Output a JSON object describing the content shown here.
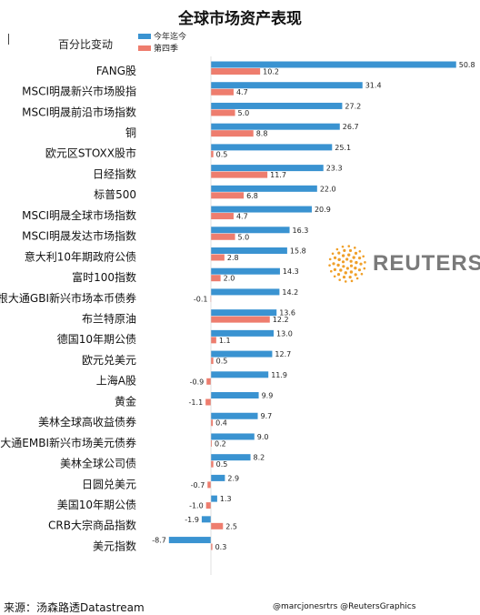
{
  "title": "全球市场资产表现",
  "subtitle": "百分比变动",
  "source": "来源：汤森路透Datastream",
  "credit": "@marcjonesrtrs @ReutersGraphics",
  "logo_text": "REUTERS",
  "colors": {
    "ytd": "#3a93d1",
    "q4": "#ee7d6e",
    "logo": "#f0a02a"
  },
  "chart_data": {
    "type": "bar",
    "orientation": "horizontal",
    "title": "全球市场资产表现",
    "subtitle": "百分比变动",
    "legend_position": "top-left",
    "categories": [
      "FANG股",
      "MSCI明晟新兴市场股指",
      "MSCI明晟前沿市场指数",
      "铜",
      "欧元区STOXX股市",
      "日经指数",
      "标普500",
      "MSCI明晟全球市场指数",
      "MSCI明晟发达市场指数",
      "意大利10年期政府公债",
      "富时100指数",
      "、摩根大通GBI新兴市场本币债券",
      "布兰特原油",
      "德国10年期公债",
      "欧元兑美元",
      "上海A股",
      "黄金",
      "美林全球高收益债券",
      "摩根大通EMBI新兴市场美元债券",
      "美林全球公司债",
      "日圆兑美元",
      "美国10年期公债",
      "CRB大宗商品指数",
      "美元指数"
    ],
    "series": [
      {
        "name": "今年迄今",
        "values": [
          50.8,
          31.4,
          27.2,
          26.7,
          25.1,
          23.3,
          22.0,
          20.9,
          16.3,
          15.8,
          14.3,
          14.2,
          13.6,
          13.0,
          12.7,
          11.9,
          9.9,
          9.7,
          9.0,
          8.2,
          2.9,
          1.3,
          -1.9,
          -8.7
        ],
        "labels": [
          "50.8",
          "31.4",
          "27.2",
          "26.7",
          "25.1",
          "23.3",
          "22.0",
          "20.9",
          "16.3",
          "15.8",
          "14.3",
          "14.2",
          "13.6",
          "13.0",
          "12.7",
          "11.9",
          "9.9",
          "9.7",
          "9.0",
          "8.2",
          "2.9",
          "1.3",
          "-1.9",
          "-8.7"
        ]
      },
      {
        "name": "第四季",
        "values": [
          10.2,
          4.7,
          5.0,
          8.8,
          0.5,
          11.7,
          6.8,
          4.7,
          5.0,
          2.8,
          2.0,
          -0.1,
          12.2,
          1.1,
          0.5,
          -0.9,
          -1.1,
          0.4,
          0.2,
          0.5,
          -0.7,
          -1.0,
          2.5,
          0.3
        ],
        "labels": [
          "10.2",
          "4.7",
          "5.0",
          "8.8",
          "0.5",
          "11.7",
          "6.8",
          "4.7",
          "5.0",
          "2.8",
          "2.0",
          "-0.1",
          "12.2",
          "1.1",
          "0.5",
          "-0.9",
          "-1.1",
          "0.4",
          "0.2",
          "0.5",
          "-0.7",
          "-1.0",
          "2.5",
          "0.3"
        ]
      }
    ]
  }
}
